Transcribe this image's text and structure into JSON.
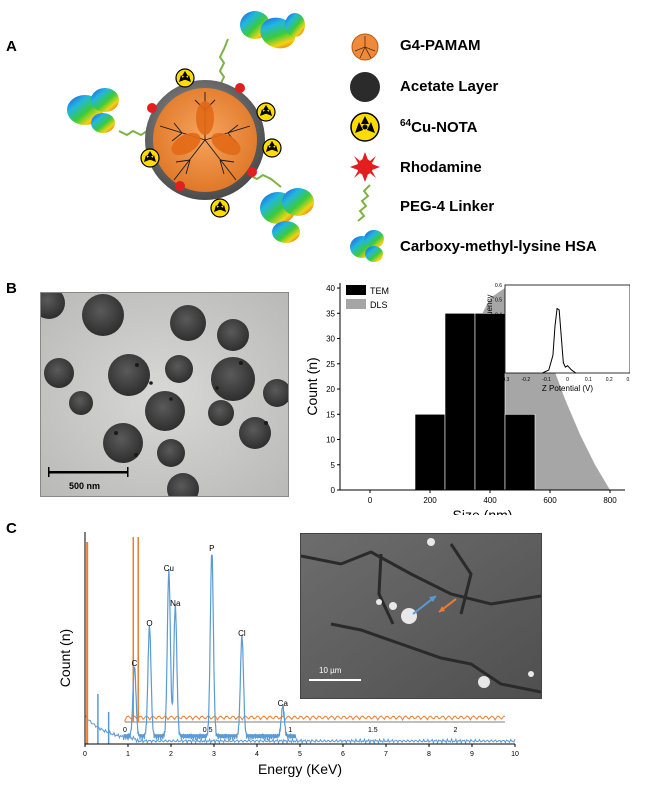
{
  "panels": {
    "a": "A",
    "b": "B",
    "c": "C"
  },
  "legend": {
    "items": [
      {
        "label": "G4-PAMAM",
        "icon": "dendrimer-icon"
      },
      {
        "label": "Acetate Layer",
        "icon": "acetate-sphere-icon"
      },
      {
        "label": "Cu-NOTA",
        "sup": "64",
        "icon": "radioactive-icon"
      },
      {
        "label": "Rhodamine",
        "icon": "rhodamine-star-icon"
      },
      {
        "label": "PEG-4 Linker",
        "icon": "linker-icon"
      },
      {
        "label": "Carboxy-methyl-lysine HSA",
        "icon": "protein-icon"
      }
    ]
  },
  "tem_image": {
    "scale_bar_label": "500 nm"
  },
  "eds_sem_image": {
    "scale_bar_label": "10 µm"
  },
  "colors": {
    "dendrimer": "#ef8a3c",
    "dls_fill": "#a6a6a6",
    "eds_blue": "#5b9bd5",
    "eds_orange": "#ed7d31",
    "linker": "#7cb342"
  },
  "chart_data": [
    {
      "type": "bar",
      "xlabel": "Size (nm)",
      "ylabel": "Count (n)",
      "xlim": [
        -100,
        850
      ],
      "ylim": [
        0,
        41
      ],
      "x_ticks": [
        0,
        200,
        400,
        600,
        800
      ],
      "y_ticks": [
        0,
        5,
        10,
        15,
        20,
        25,
        30,
        35,
        40
      ],
      "legend_position": "top-left",
      "series": [
        {
          "name": "TEM",
          "kind": "bar",
          "color": "#000000",
          "x": [
            200,
            300,
            400,
            500
          ],
          "values": [
            15,
            35,
            35,
            15
          ]
        },
        {
          "name": "DLS",
          "kind": "area",
          "color": "#a6a6a6",
          "x": [
            150,
            200,
            250,
            300,
            350,
            400,
            450,
            500,
            550,
            600,
            650,
            700,
            750,
            800
          ],
          "values": [
            0,
            6,
            15,
            24,
            32,
            38,
            40,
            38,
            33,
            26,
            18,
            11,
            5,
            0
          ]
        }
      ]
    },
    {
      "type": "line",
      "xlabel": "Z Potential (V)",
      "ylabel": "Relative Frequency",
      "xlim": [
        -0.3,
        0.3
      ],
      "ylim": [
        0,
        0.6
      ],
      "x_ticks": [
        "-0.3",
        "-0.2",
        "-0.1",
        "0",
        "0.1",
        "0.2",
        "0.3"
      ],
      "y_ticks": [
        "0",
        "0.1",
        "0.2",
        "0.3",
        "0.4",
        "0.5",
        "0.6"
      ],
      "series": [
        {
          "x": [
            -0.12,
            -0.09,
            -0.07,
            -0.06,
            -0.05,
            -0.04,
            -0.03,
            -0.02,
            -0.01,
            0.0,
            0.02,
            0.04
          ],
          "values": [
            0,
            0.02,
            0.12,
            0.32,
            0.44,
            0.43,
            0.25,
            0.07,
            0.04,
            0.05,
            0.02,
            0
          ]
        }
      ]
    },
    {
      "type": "line",
      "xlabel": "Energy (KeV)",
      "ylabel": "Count (n)",
      "xlim": [
        0,
        10
      ],
      "x_ticks": [
        "0",
        "1",
        "2",
        "3",
        "4",
        "5",
        "6",
        "7",
        "8",
        "9",
        "10"
      ],
      "peak_labels": [
        {
          "label": "C",
          "x": 1.15
        },
        {
          "label": "O",
          "x": 1.5
        },
        {
          "label": "Cu",
          "x": 1.95
        },
        {
          "label": "Na",
          "x": 2.1
        },
        {
          "label": "P",
          "x": 2.95
        },
        {
          "label": "Cl",
          "x": 3.65
        },
        {
          "label": "Ca",
          "x": 4.6
        }
      ],
      "inset_x_ticks": [
        "0",
        "0.5",
        "1",
        "1.5",
        "2"
      ]
    }
  ]
}
